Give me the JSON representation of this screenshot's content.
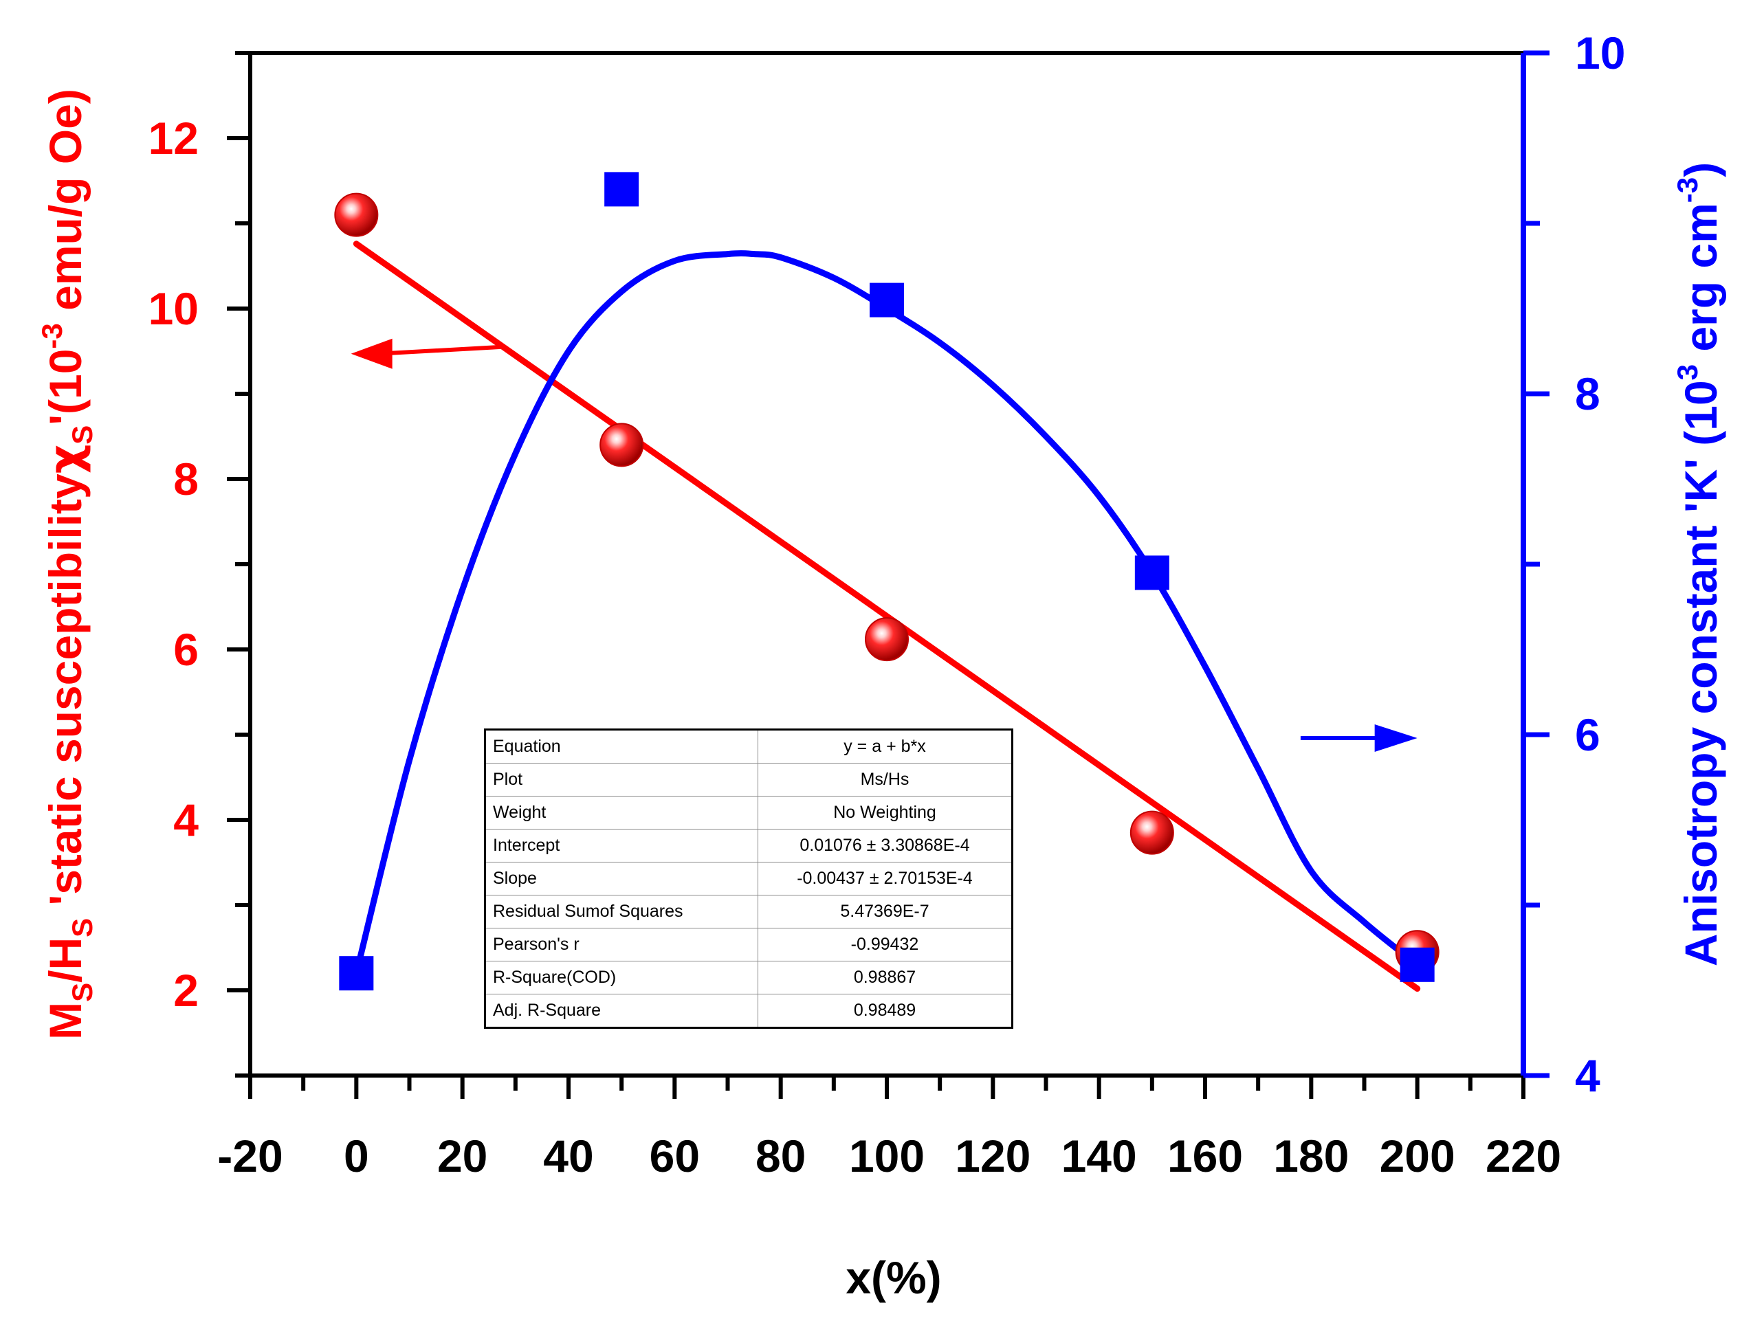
{
  "chart_data": {
    "type": "scatter",
    "title": "",
    "xlabel": "x(%)",
    "xlim": [
      -20,
      220
    ],
    "xticks": [
      -20,
      0,
      20,
      40,
      60,
      80,
      100,
      120,
      140,
      160,
      180,
      200,
      220
    ],
    "y_left": {
      "label": {
        "p1": "M",
        "p1s": "S",
        "p2": "/H",
        "p2s": "S",
        "p3": " 'static susceptibility",
        "chi": "χ",
        "chis": "S",
        "p4": "'(10",
        "p4e": "-3",
        "p5": " emu/g Oe)"
      },
      "lim": [
        1,
        13
      ],
      "ticks": [
        2,
        4,
        6,
        8,
        10,
        12
      ],
      "color": "#ff0000"
    },
    "y_right": {
      "label": {
        "p1": "Anisotropy constant 'K' (10",
        "p1e": "3",
        "p2": " erg cm",
        "p2e": "-3",
        "p3": ")"
      },
      "lim": [
        4,
        10
      ],
      "ticks": [
        4,
        6,
        8,
        10
      ],
      "color": "#0000ff"
    },
    "series": [
      {
        "name": "Ms/Hs",
        "axis": "left",
        "color": "#ff0000",
        "marker": "sphere",
        "x": [
          0,
          50,
          100,
          150,
          200
        ],
        "y": [
          11.1,
          8.4,
          6.12,
          3.85,
          2.45
        ],
        "fit": {
          "type": "linear",
          "intercept": 10.76,
          "slope": -0.0437,
          "x_range": [
            0,
            200
          ]
        }
      },
      {
        "name": "K",
        "axis": "right",
        "color": "#0000ff",
        "marker": "square",
        "x": [
          0,
          50,
          100,
          150,
          200
        ],
        "y": [
          4.6,
          9.2,
          8.55,
          6.95,
          4.65
        ],
        "fit": {
          "type": "smooth",
          "x": [
            0,
            10,
            20,
            30,
            40,
            50,
            60,
            70,
            75,
            80,
            90,
            100,
            110,
            120,
            130,
            140,
            150,
            160,
            170,
            180,
            190,
            200
          ],
          "y": [
            4.6,
            5.85,
            6.85,
            7.65,
            8.25,
            8.6,
            8.78,
            8.82,
            8.82,
            8.8,
            8.68,
            8.5,
            8.3,
            8.05,
            7.75,
            7.4,
            6.95,
            6.4,
            5.8,
            5.2,
            4.9,
            4.65
          ]
        }
      }
    ],
    "arrows": [
      {
        "series": "Ms/Hs",
        "direction": "left"
      },
      {
        "series": "K",
        "direction": "right"
      }
    ]
  },
  "fit_table": {
    "rows": [
      {
        "key": "Equation",
        "value": "y = a + b*x"
      },
      {
        "key": "Plot",
        "value": "Ms/Hs"
      },
      {
        "key": "Weight",
        "value": "No Weighting"
      },
      {
        "key": "Intercept",
        "value": "0.01076 ± 3.30868E-4"
      },
      {
        "key": "Slope",
        "value": "-0.00437 ± 2.70153E-4"
      },
      {
        "key": "Residual Sumof Squares",
        "value": "5.47369E-7"
      },
      {
        "key": "Pearson's r",
        "value": "-0.99432"
      },
      {
        "key": "R-Square(COD)",
        "value": "0.98867"
      },
      {
        "key": "Adj. R-Square",
        "value": "0.98489"
      }
    ]
  }
}
